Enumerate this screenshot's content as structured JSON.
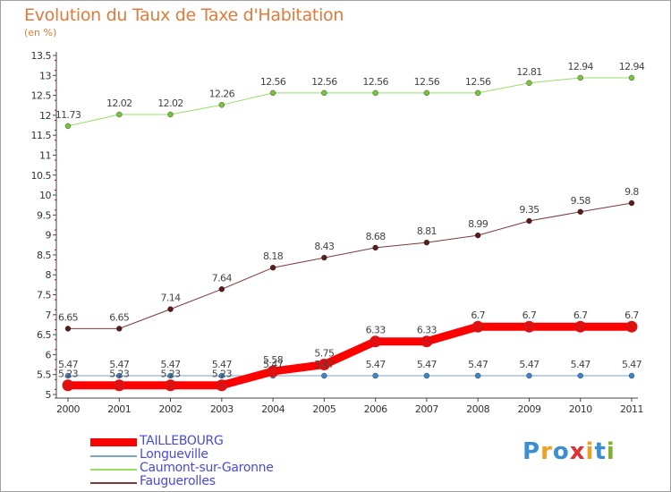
{
  "header": {
    "title": "Evolution du Taux de Taxe d'Habitation",
    "unit": "(en %)"
  },
  "logo": {
    "text": "Proxiti",
    "letters": [
      "P",
      "r",
      "o",
      "x",
      "i",
      "t",
      "i"
    ],
    "colors": [
      "#3b8fd0",
      "#f0a020",
      "#3b8fd0",
      "#e03030",
      "#f0a020",
      "#3b8fd0",
      "#80b030"
    ]
  },
  "chart_data": {
    "type": "line",
    "x": [
      "2000",
      "2001",
      "2002",
      "2003",
      "2004",
      "2005",
      "2006",
      "2007",
      "2008",
      "2009",
      "2010",
      "2011"
    ],
    "ylim": [
      5,
      13.5
    ],
    "yticks": [
      "5",
      "5.5",
      "6",
      "6.5",
      "7",
      "7.5",
      "8",
      "8.5",
      "9",
      "9.5",
      "10",
      "10.5",
      "11",
      "11.5",
      "12",
      "12.5",
      "13",
      "13.5"
    ],
    "grid": false,
    "legend_position": "bottom-left",
    "series": [
      {
        "name": "TAILLEBOURG",
        "color": "#ff0000",
        "marker": "#e01010",
        "values": [
          5.23,
          5.23,
          5.23,
          5.23,
          5.58,
          5.75,
          6.33,
          6.33,
          6.7,
          6.7,
          6.7,
          6.7
        ],
        "labels": [
          "5.23",
          "5.23",
          "5.23",
          "5.23",
          "5.58",
          "5.75",
          "6.33",
          "6.33",
          "6.7",
          "6.7",
          "6.7",
          "6.7"
        ]
      },
      {
        "name": "Longueville",
        "color": "#7aa6c8",
        "marker": "#3d85c6",
        "values": [
          5.47,
          5.47,
          5.47,
          5.47,
          5.47,
          5.47,
          5.47,
          5.47,
          5.47,
          5.47,
          5.47,
          5.47
        ],
        "labels": [
          "5.47",
          "5.47",
          "5.47",
          "5.47",
          "5.47",
          "5.47",
          "5.47",
          "5.47",
          "5.47",
          "5.47",
          "5.47",
          "5.47"
        ]
      },
      {
        "name": "Caumont-sur-Garonne",
        "color": "#99dd66",
        "marker": "#77c43c",
        "values": [
          11.73,
          12.02,
          12.02,
          12.26,
          12.56,
          12.56,
          12.56,
          12.56,
          12.56,
          12.81,
          12.94,
          12.94
        ],
        "labels": [
          "11.73",
          "12.02",
          "12.02",
          "12.26",
          "12.56",
          "12.56",
          "12.56",
          "12.56",
          "12.56",
          "12.81",
          "12.94",
          "12.94"
        ]
      },
      {
        "name": "Fauguerolles",
        "color": "#7a3a3a",
        "marker": "#5a1a1a",
        "values": [
          6.65,
          6.65,
          7.14,
          7.64,
          8.18,
          8.43,
          8.68,
          8.81,
          8.99,
          9.35,
          9.58,
          9.8
        ],
        "labels": [
          "6.65",
          "6.65",
          "7.14",
          "7.64",
          "8.18",
          "8.43",
          "8.68",
          "8.81",
          "8.99",
          "9.35",
          "9.58",
          "9.8"
        ]
      }
    ]
  }
}
